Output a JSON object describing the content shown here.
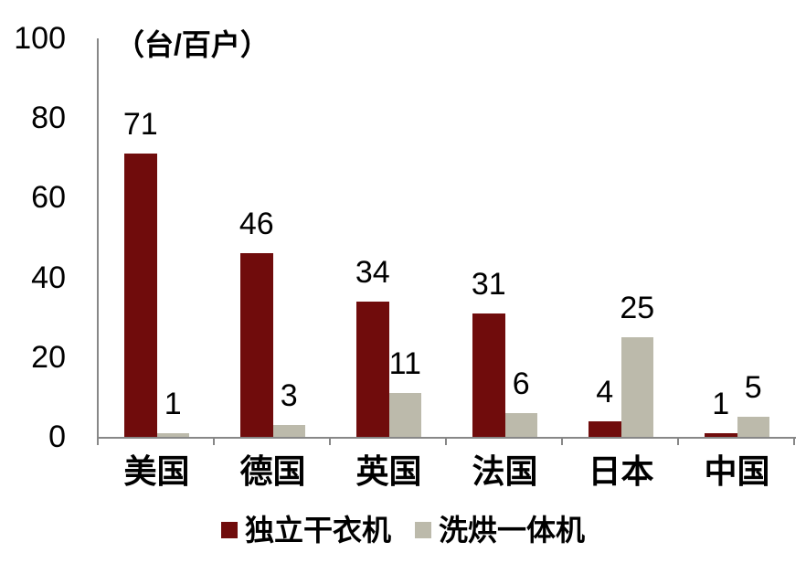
{
  "chart_data": {
    "type": "bar",
    "title": "",
    "unit_label": "（台/百户）",
    "categories": [
      "美国",
      "德国",
      "英国",
      "法国",
      "日本",
      "中国"
    ],
    "series": [
      {
        "name": "独立干衣机",
        "color": "#700C0C",
        "values": [
          71,
          46,
          34,
          31,
          4,
          1
        ]
      },
      {
        "name": "洗烘一体机",
        "color": "#BCBAAB",
        "values": [
          1,
          3,
          11,
          6,
          25,
          5
        ]
      }
    ],
    "ylim": [
      0,
      100
    ],
    "yticks": [
      0,
      20,
      40,
      60,
      80,
      100
    ],
    "grid": false,
    "legend_position": "bottom",
    "axis_color": "#878787",
    "text_color": "#000000"
  }
}
